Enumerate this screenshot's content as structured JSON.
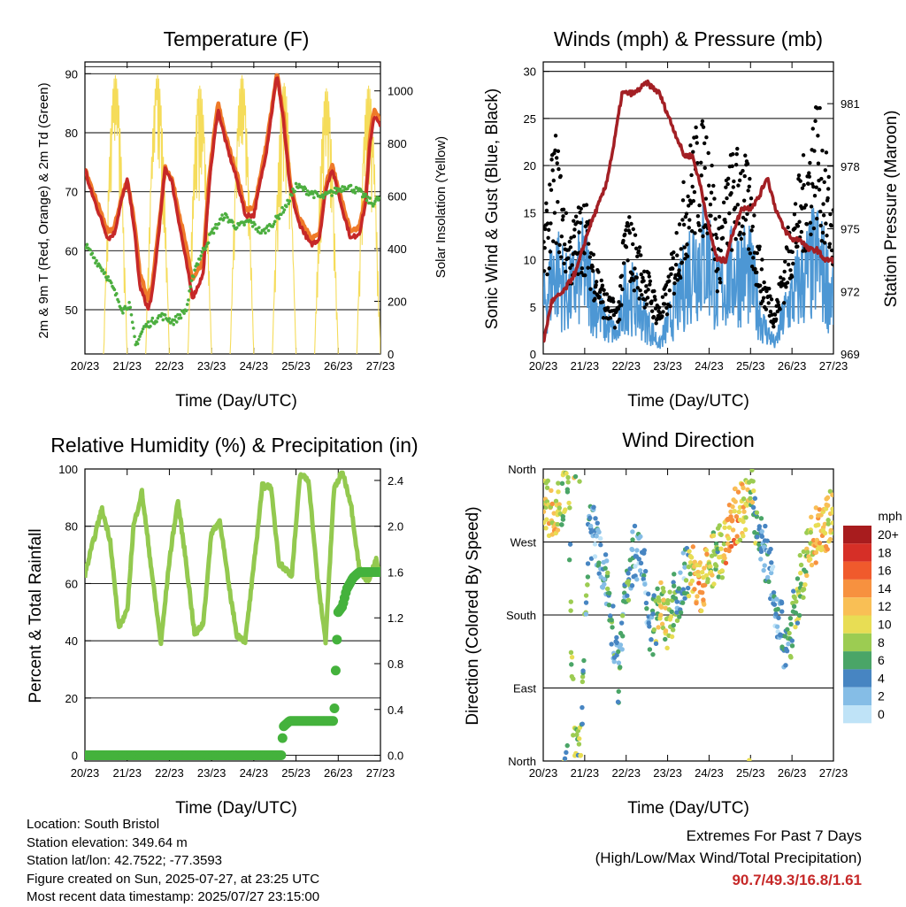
{
  "panels": {
    "temperature": {
      "title": "Temperature (F)",
      "ylabel_left": "2m & 9m T (Red, Orange) & 2m Td (Green)",
      "ylabel_right": "Solar Insolation (Yellow)",
      "xlabel": "Time (Day/UTC)"
    },
    "winds": {
      "title": "Winds (mph) & Pressure (mb)",
      "ylabel_left": "Sonic Wind & Gust (Blue, Black)",
      "ylabel_right": "Station Pressure (Maroon)",
      "xlabel": "Time (Day/UTC)"
    },
    "humidity": {
      "title": "Relative Humidity (%) & Precipitation (in)",
      "ylabel_left": "Percent & Total Rainfall",
      "xlabel": "Time (Day/UTC)"
    },
    "direction": {
      "title": "Wind Direction",
      "ylabel_left": "Direction (Colored By Speed)",
      "xlabel": "Time (Day/UTC)"
    }
  },
  "x_ticks": [
    "20/23",
    "21/23",
    "22/23",
    "23/23",
    "24/23",
    "25/23",
    "26/23",
    "27/23"
  ],
  "colors": {
    "temp_2m": "#c62828",
    "temp_9m": "#ef7a29",
    "dewpoint": "#4cae3f",
    "solar": "#f5dc5a",
    "wind": "#4d97d4",
    "gust": "#000000",
    "pressure": "#a31f24",
    "rh": "#93c94f",
    "precip": "#44b23c",
    "extremes": "#c62828"
  },
  "colorbar": {
    "title": "mph",
    "labels": [
      "20+",
      "18",
      "16",
      "14",
      "12",
      "10",
      "8",
      "6",
      "4",
      "2",
      "0"
    ],
    "colors": [
      "#a81c1e",
      "#d62f27",
      "#f05a2c",
      "#f7913f",
      "#f9bf55",
      "#e8dd54",
      "#9ccc52",
      "#4aa567",
      "#4785c2",
      "#85bde6",
      "#bfe3f7"
    ]
  },
  "chart_data": [
    {
      "type": "line",
      "title": "Temperature (F)",
      "xlabel": "Time (Day/UTC)",
      "ylabel": "2m & 9m T (Red, Orange) & 2m Td (Green)",
      "y2label": "Solar Insolation (Yellow)",
      "x_unit": "days since 20/23 UTC",
      "ylim": [
        42.5,
        92
      ],
      "y_ticks": [
        50,
        60,
        70,
        80,
        90
      ],
      "y2lim": [
        0,
        1110
      ],
      "y2_ticks": [
        0,
        200,
        400,
        600,
        800,
        1000
      ],
      "grid": true,
      "series": [
        {
          "name": "2m T",
          "axis": "left",
          "x": [
            0,
            0.1,
            0.3,
            0.55,
            0.7,
            0.85,
            1.0,
            1.15,
            1.3,
            1.5,
            1.6,
            1.75,
            1.9,
            2.05,
            2.3,
            2.55,
            2.8,
            2.95,
            3.15,
            3.35,
            3.6,
            3.8,
            4.0,
            4.3,
            4.55,
            4.7,
            4.85,
            5.05,
            5.35,
            5.55,
            5.7,
            5.85,
            6.1,
            6.3,
            6.5,
            6.65,
            6.75,
            6.85,
            7.0
          ],
          "values": [
            74,
            71,
            67,
            62,
            63,
            68,
            72,
            65,
            54,
            50,
            53,
            63,
            74,
            72,
            62,
            52,
            56,
            72,
            84,
            78,
            72,
            66,
            66,
            77,
            90,
            82,
            71,
            65,
            61,
            62,
            70,
            74,
            67,
            62,
            63,
            68,
            78,
            83,
            81
          ]
        },
        {
          "name": "9m T",
          "axis": "left",
          "x": [
            0,
            0.1,
            0.3,
            0.55,
            0.7,
            0.85,
            1.0,
            1.15,
            1.3,
            1.5,
            1.6,
            1.75,
            1.9,
            2.05,
            2.3,
            2.55,
            2.8,
            2.95,
            3.15,
            3.35,
            3.6,
            3.8,
            4.0,
            4.3,
            4.55,
            4.7,
            4.85,
            5.05,
            5.35,
            5.55,
            5.7,
            5.85,
            6.1,
            6.3,
            6.5,
            6.65,
            6.75,
            6.85,
            7.0
          ],
          "values": [
            74,
            71.5,
            68,
            63,
            64,
            68.5,
            72,
            66,
            56,
            52,
            54.5,
            64,
            74,
            72.5,
            64,
            55,
            58,
            73,
            85,
            79,
            73,
            67,
            67,
            78,
            90,
            83,
            72,
            66,
            62,
            63,
            71,
            74.5,
            68,
            63,
            64,
            69,
            79,
            84,
            82
          ]
        },
        {
          "name": "2m Td",
          "axis": "left",
          "x": [
            0,
            0.3,
            0.5,
            0.7,
            0.9,
            1.05,
            1.2,
            1.4,
            1.6,
            1.8,
            2.1,
            2.4,
            2.6,
            2.8,
            3.0,
            3.3,
            3.6,
            3.9,
            4.2,
            4.5,
            4.8,
            5.0,
            5.3,
            5.6,
            5.9,
            6.2,
            6.5,
            6.8,
            7.0
          ],
          "values": [
            61,
            58,
            56,
            53,
            50,
            51,
            44,
            47,
            48,
            49,
            48,
            50,
            57,
            60,
            63,
            66,
            64,
            65,
            63,
            65,
            68,
            71,
            70,
            69,
            70,
            71,
            70,
            68,
            69
          ]
        },
        {
          "name": "Solar Insolation",
          "axis": "right",
          "peaks_x": [
            0.72,
            1.72,
            2.72,
            3.72,
            4.72,
            5.72,
            6.72
          ],
          "peaks": [
            1060,
            1060,
            1020,
            1060,
            1030,
            1010,
            1020
          ],
          "half_width_days": 0.28
        }
      ]
    },
    {
      "type": "line",
      "title": "Winds (mph) & Pressure (mb)",
      "xlabel": "Time (Day/UTC)",
      "ylabel": "Sonic Wind & Gust (Blue, Black)",
      "y2label": "Station Pressure (Maroon)",
      "x_unit": "days since 20/23 UTC",
      "ylim": [
        0,
        31
      ],
      "y_ticks": [
        0,
        5,
        10,
        15,
        20,
        25,
        30
      ],
      "y2lim": [
        969,
        983
      ],
      "y2_ticks": [
        969,
        972,
        975,
        978,
        981
      ],
      "grid": true,
      "series": [
        {
          "name": "Station Pressure",
          "axis": "right",
          "x": [
            0,
            0.2,
            0.5,
            0.8,
            1.1,
            1.3,
            1.5,
            1.7,
            1.9,
            2.2,
            2.5,
            2.8,
            3.1,
            3.4,
            3.6,
            3.8,
            4.0,
            4.2,
            4.4,
            4.6,
            4.8,
            5.0,
            5.2,
            5.4,
            5.6,
            5.8,
            6.0,
            6.2,
            6.4,
            6.6,
            6.8,
            7.0
          ],
          "values": [
            969.5,
            971.5,
            972,
            973,
            975,
            976,
            977,
            979,
            981.5,
            981.5,
            982,
            981.5,
            980,
            978.5,
            978.5,
            977,
            975,
            973.5,
            973.5,
            975,
            976,
            976,
            976.5,
            977.5,
            976,
            975,
            974.5,
            974.5,
            974,
            974,
            973.5,
            973.5
          ]
        },
        {
          "name": "Sonic Wind",
          "axis": "left",
          "x": [
            0,
            0.3,
            0.6,
            1.0,
            1.2,
            1.5,
            1.8,
            2.0,
            2.4,
            2.8,
            3.0,
            3.3,
            3.6,
            4.0,
            4.2,
            4.5,
            4.8,
            5.0,
            5.3,
            5.6,
            5.8,
            6.0,
            6.3,
            6.6,
            7.0
          ],
          "values": [
            5,
            9,
            6,
            9,
            6,
            3,
            2,
            7,
            4,
            1,
            3,
            6,
            10,
            10,
            6,
            8,
            9,
            8,
            3,
            1,
            4,
            6,
            8,
            10,
            6
          ]
        },
        {
          "name": "Gust",
          "axis": "left",
          "x": [
            0,
            0.3,
            0.6,
            1.0,
            1.2,
            1.5,
            1.8,
            2.0,
            2.4,
            2.8,
            3.0,
            3.3,
            3.6,
            4.0,
            4.2,
            4.5,
            4.8,
            5.0,
            5.3,
            5.6,
            5.8,
            6.0,
            6.3,
            6.6,
            7.0
          ],
          "values": [
            10,
            18,
            10,
            13,
            9,
            5,
            4,
            12,
            8,
            4,
            6,
            12,
            18,
            19,
            10,
            16,
            17,
            14,
            7,
            4,
            8,
            12,
            16,
            21,
            12
          ]
        }
      ]
    },
    {
      "type": "line",
      "title": "Relative Humidity (%) & Precipitation (in)",
      "xlabel": "Time (Day/UTC)",
      "ylabel": "Percent & Total Rainfall",
      "x_unit": "days since 20/23 UTC",
      "ylim": [
        -2,
        100
      ],
      "y_ticks": [
        0,
        20,
        40,
        60,
        80,
        100
      ],
      "y2lim": [
        -0.05,
        2.5
      ],
      "y2_ticks": [
        "0.0",
        "0.4",
        "0.8",
        "1.2",
        "1.6",
        "2.0",
        "2.4"
      ],
      "grid": true,
      "series": [
        {
          "name": "Relative Humidity",
          "axis": "left",
          "x": [
            0,
            0.15,
            0.4,
            0.6,
            0.8,
            1.0,
            1.15,
            1.35,
            1.6,
            1.8,
            2.0,
            2.2,
            2.4,
            2.6,
            2.8,
            3.0,
            3.2,
            3.4,
            3.6,
            3.8,
            4.0,
            4.2,
            4.4,
            4.6,
            4.9,
            5.1,
            5.3,
            5.5,
            5.7,
            5.9,
            6.1,
            6.3,
            6.5,
            6.7,
            6.9,
            7.0
          ],
          "values": [
            63,
            72,
            86,
            75,
            45,
            50,
            80,
            92,
            62,
            39,
            68,
            89,
            67,
            42,
            46,
            78,
            82,
            60,
            42,
            40,
            66,
            94,
            94,
            67,
            63,
            98,
            96,
            63,
            40,
            93,
            99,
            88,
            65,
            61,
            68,
            63
          ]
        },
        {
          "name": "Total Precipitation",
          "axis": "right",
          "x": [
            0,
            1.0,
            2.0,
            3.0,
            4.0,
            4.65,
            4.7,
            4.85,
            5.2,
            5.6,
            5.9,
            5.95,
            6.0,
            6.1,
            6.2,
            6.35,
            6.5,
            7.0
          ],
          "values": [
            0,
            0,
            0,
            0,
            0,
            0,
            0.25,
            0.3,
            0.3,
            0.3,
            0.3,
            0.85,
            1.25,
            1.3,
            1.45,
            1.55,
            1.6,
            1.6
          ]
        }
      ]
    },
    {
      "type": "scatter",
      "title": "Wind Direction",
      "xlabel": "Time (Day/UTC)",
      "ylabel": "Direction (Colored By Speed)",
      "x_unit": "days since 20/23 UTC",
      "ylim": [
        0,
        360
      ],
      "y_tick_labels": [
        "North",
        "East",
        "South",
        "West",
        "North"
      ],
      "color_scale": "mph",
      "grid": true,
      "series": [
        {
          "name": "Wind Direction",
          "x": [
            0.1,
            0.25,
            0.5,
            0.6,
            0.75,
            0.9,
            1.1,
            1.3,
            1.6,
            1.8,
            2.0,
            2.2,
            2.4,
            2.6,
            2.8,
            3.0,
            3.2,
            3.4,
            3.6,
            3.8,
            4.0,
            4.2,
            4.4,
            4.6,
            4.8,
            5.0,
            5.2,
            5.4,
            5.6,
            5.8,
            6.0,
            6.2,
            6.4,
            6.6,
            6.8,
            7.0
          ],
          "direction": [
            315,
            300,
            330,
            345,
            10,
            15,
            290,
            270,
            200,
            100,
            220,
            260,
            250,
            160,
            190,
            170,
            200,
            230,
            240,
            210,
            240,
            255,
            260,
            300,
            310,
            330,
            280,
            250,
            200,
            150,
            160,
            220,
            260,
            280,
            290,
            310
          ],
          "speed": [
            10,
            12,
            8,
            6,
            9,
            7,
            4,
            3,
            5,
            4,
            6,
            3,
            2,
            4,
            9,
            10,
            6,
            3,
            11,
            13,
            10,
            7,
            12,
            14,
            11,
            9,
            5,
            3,
            3,
            4,
            6,
            8,
            10,
            12,
            12,
            8
          ]
        }
      ]
    }
  ],
  "info": {
    "location": "Location: South Bristol",
    "elevation": "Station elevation: 349.64 m",
    "latlon": "Station lat/lon: 42.7522; -77.3593",
    "created": "Figure created on Sun, 2025-07-27, at 23:25 UTC",
    "timestamp": "Most recent data timestamp: 2025/07/27 23:15:00"
  },
  "extremes": {
    "title": "Extremes For Past 7 Days",
    "subtitle": "(High/Low/Max Wind/Total Precipitation)",
    "values": "90.7/49.3/16.8/1.61"
  }
}
